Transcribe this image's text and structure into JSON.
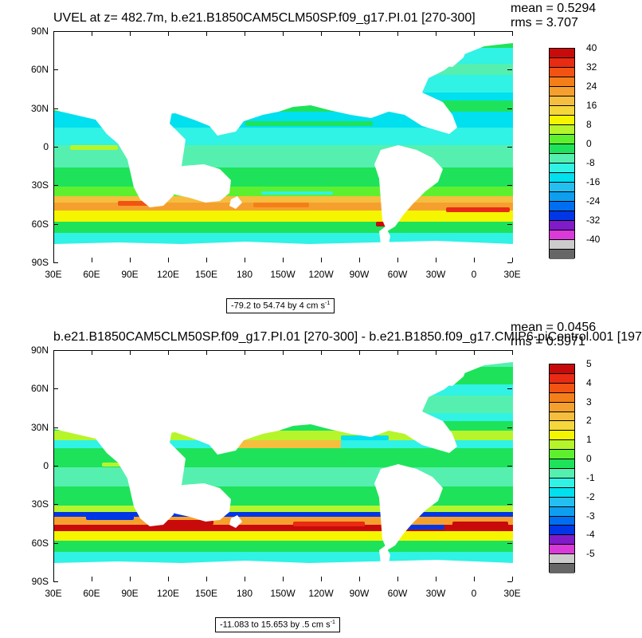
{
  "colormap": [
    "#666666",
    "#cccccc",
    "#d93ad9",
    "#7f1bc9",
    "#0036e6",
    "#006ef0",
    "#0d9ef0",
    "#23bff0",
    "#00e0ee",
    "#30f2e5",
    "#55f0b0",
    "#1ee35a",
    "#5ef02f",
    "#b6f52c",
    "#f5f500",
    "#f5d73c",
    "#f5be3f",
    "#f5a02e",
    "#f47f18",
    "#f25212",
    "#e82b12",
    "#c80a0a"
  ],
  "land_color": "#ffffff",
  "y_labels": [
    "90N",
    "60N",
    "30N",
    "0",
    "30S",
    "60S",
    "90S"
  ],
  "x_labels": [
    "30E",
    "60E",
    "90E",
    "120E",
    "150E",
    "180",
    "150W",
    "120W",
    "90W",
    "60W",
    "30W",
    "0",
    "30E"
  ],
  "panels": [
    {
      "title": "UVEL at z= 482.7m, b.e21.B1850CAM5CLM50SP.f09_g17.PI.01 [270-300]",
      "mean": "mean = 0.5294",
      "rms": "rms = 3.707",
      "range_text": "-79.2 to 54.74 by 4 cm s",
      "range_exp": "-1",
      "colorbar_labels": [
        "40",
        "32",
        "24",
        "16",
        "8",
        "0",
        "-8",
        "-16",
        "-24",
        "-32",
        "-40"
      ]
    },
    {
      "title": "b.e21.B1850CAM5CLM50SP.f09_g17.PI.01 [270-300] - b.e21.B1850.f09_g17.CMIP6-piControl.001 [197",
      "mean": "mean = 0.0456",
      "rms": "rms = 0.5971",
      "range_text": "-11.083 to 15.653 by .5 cm s",
      "range_exp": "-1",
      "colorbar_labels": [
        "5",
        "4",
        "3",
        "2",
        "1",
        "0",
        "-1",
        "-2",
        "-3",
        "-4",
        "-5"
      ]
    }
  ]
}
